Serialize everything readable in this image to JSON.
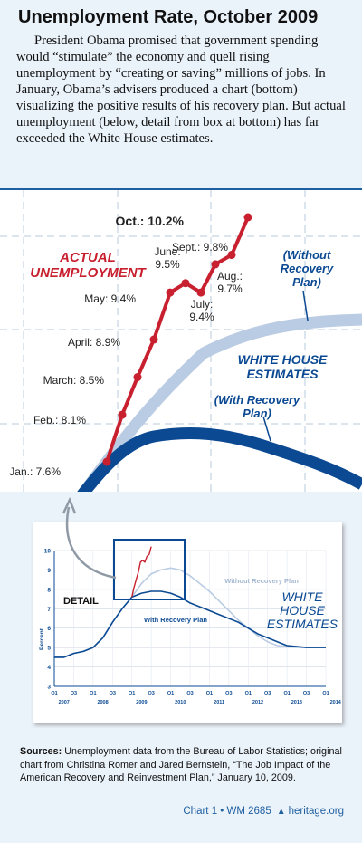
{
  "title": "Unemployment Rate, October 2009",
  "intro": "President Obama promised that government spending would “stimulate” the economy and quell rising unemployment by “creating or saving” millions of jobs. In January, Obama’s advisers produced a chart (bottom) visualizing the positive results of his recovery plan. But actual unemployment (below, detail from box at bottom) has far exceeded the White House estimates.",
  "colors": {
    "actual": "#c8202f",
    "with_plan": "#0b4a93",
    "without_plan": "#b9cce3",
    "accent": "#1f5fa0"
  },
  "chart_data": [
    {
      "type": "line",
      "title": "",
      "xlabel": "",
      "ylabel": "",
      "labels": {
        "actual_series": "ACTUAL UNEMPLOYMENT",
        "white_house": "WHITE HOUSE ESTIMATES",
        "without_plan": "(Without Recovery Plan)",
        "with_plan": "(With Recovery Plan)"
      },
      "series": [
        {
          "name": "ACTUAL UNEMPLOYMENT",
          "color": "#c8202f",
          "points": [
            {
              "label": "Jan.: 7.6%",
              "value": 7.6
            },
            {
              "label": "Feb.: 8.1%",
              "value": 8.1
            },
            {
              "label": "March: 8.5%",
              "value": 8.5
            },
            {
              "label": "April: 8.9%",
              "value": 8.9
            },
            {
              "label": "May: 9.4%",
              "value": 9.4
            },
            {
              "label": "June: 9.5%",
              "value": 9.5
            },
            {
              "label": "July: 9.4%",
              "value": 9.4
            },
            {
              "label": "Aug.: 9.7%",
              "value": 9.7
            },
            {
              "label": "Sept.: 9.8%",
              "value": 9.8
            },
            {
              "label": "Oct.: 10.2%",
              "value": 10.2
            }
          ]
        }
      ]
    },
    {
      "type": "line",
      "title": "",
      "xlabel": "",
      "ylabel": "Percent",
      "ylim": [
        3,
        10
      ],
      "yticks": [
        "10",
        "9",
        "8",
        "7",
        "6",
        "5",
        "4",
        "3"
      ],
      "xticks": [
        "Q1",
        "Q3",
        "Q1",
        "Q3",
        "Q1",
        "Q3",
        "Q1",
        "Q3",
        "Q1",
        "Q3",
        "Q1",
        "Q3",
        "Q1",
        "Q3",
        "Q1"
      ],
      "xyears": [
        "2007",
        "2008",
        "2009",
        "2010",
        "2011",
        "2012",
        "2013",
        "2014"
      ],
      "labels": {
        "detail": "DETAIL",
        "without_plan": "Without Recovery Plan",
        "with_plan": "With Recovery Plan",
        "white_house": "WHITE HOUSE ESTIMATES"
      },
      "series": [
        {
          "name": "Without Recovery Plan",
          "color": "#b9cce3",
          "values": [
            4.5,
            4.5,
            4.7,
            4.8,
            5.0,
            5.5,
            6.3,
            7.0,
            7.6,
            8.3,
            8.8,
            9.0,
            9.1,
            9.0,
            8.7,
            8.3,
            7.9,
            7.4,
            6.9,
            6.4,
            6.0,
            5.6,
            5.3,
            5.1,
            5.05,
            5.0,
            5.0,
            5.0,
            5.0
          ]
        },
        {
          "name": "With Recovery Plan",
          "color": "#0b4a93",
          "values": [
            4.5,
            4.5,
            4.7,
            4.8,
            5.0,
            5.5,
            6.3,
            7.0,
            7.6,
            7.8,
            7.9,
            7.9,
            7.8,
            7.6,
            7.3,
            7.1,
            6.9,
            6.7,
            6.5,
            6.3,
            6.0,
            5.7,
            5.5,
            5.3,
            5.1,
            5.05,
            5.0,
            5.0,
            5.0
          ]
        },
        {
          "name": "ACTUAL UNEMPLOYMENT",
          "color": "#c8202f",
          "values": [
            7.6,
            8.1,
            8.5,
            8.9,
            9.4,
            9.5,
            9.4,
            9.7,
            9.8,
            10.2
          ]
        }
      ]
    }
  ],
  "sources_label": "Sources:",
  "sources_text": " Unemployment data from the Bureau of Labor Statistics; original chart from Christina Romer and Jared Bernstein, “The Job Impact of the American Recovery and Reinvestment Plan,” January 10, 2009.",
  "footer": {
    "chart_id": "Chart 1 • WM 2685",
    "site": "heritage.org"
  }
}
